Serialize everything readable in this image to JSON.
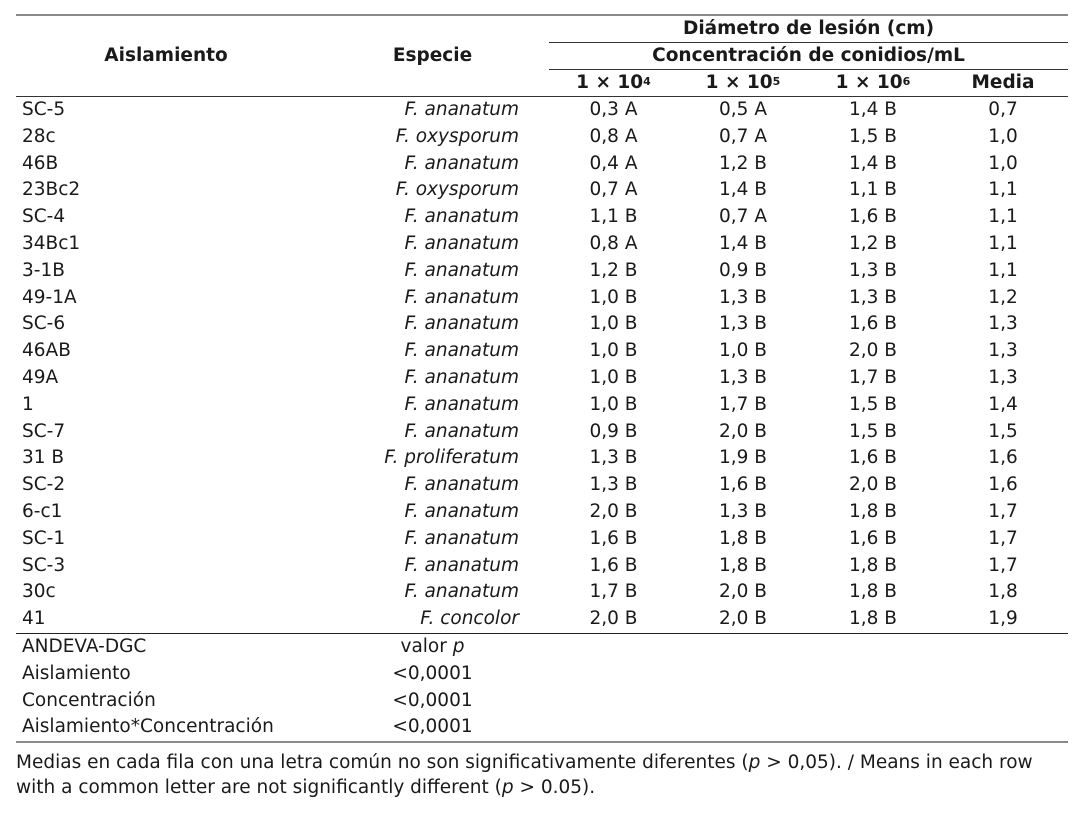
{
  "table": {
    "header": {
      "aislamiento": "Aislamiento",
      "especie": "Especie",
      "diametro": "Diámetro de lesión (cm)",
      "concentracion": "Concentración de conidios/mL",
      "conc_cols": [
        {
          "base": "1 × 10",
          "exp": "4"
        },
        {
          "base": "1 × 10",
          "exp": "5"
        },
        {
          "base": "1 × 10",
          "exp": "6"
        }
      ],
      "media": "Media"
    },
    "rows": [
      {
        "aislamiento": "SC-5",
        "especie": "F. ananatum",
        "c1": "0,3 A",
        "c2": "0,5 A",
        "c3": "1,4 B",
        "media": "0,7"
      },
      {
        "aislamiento": "28c",
        "especie": "F. oxysporum",
        "c1": "0,8 A",
        "c2": "0,7 A",
        "c3": "1,5 B",
        "media": "1,0"
      },
      {
        "aislamiento": "46B",
        "especie": "F. ananatum",
        "c1": "0,4 A",
        "c2": "1,2 B",
        "c3": "1,4 B",
        "media": "1,0"
      },
      {
        "aislamiento": "23Bc2",
        "especie": "F. oxysporum",
        "c1": "0,7 A",
        "c2": "1,4 B",
        "c3": "1,1 B",
        "media": "1,1"
      },
      {
        "aislamiento": "SC-4",
        "especie": "F. ananatum",
        "c1": "1,1 B",
        "c2": "0,7 A",
        "c3": "1,6 B",
        "media": "1,1"
      },
      {
        "aislamiento": "34Bc1",
        "especie": "F. ananatum",
        "c1": "0,8 A",
        "c2": "1,4 B",
        "c3": "1,2 B",
        "media": "1,1"
      },
      {
        "aislamiento": "3-1B",
        "especie": "F. ananatum",
        "c1": "1,2 B",
        "c2": "0,9 B",
        "c3": "1,3 B",
        "media": "1,1"
      },
      {
        "aislamiento": "49-1A",
        "especie": "F. ananatum",
        "c1": "1,0 B",
        "c2": "1,3 B",
        "c3": "1,3 B",
        "media": "1,2"
      },
      {
        "aislamiento": "SC-6",
        "especie": "F. ananatum",
        "c1": "1,0 B",
        "c2": "1,3 B",
        "c3": "1,6 B",
        "media": "1,3"
      },
      {
        "aislamiento": "46AB",
        "especie": "F. ananatum",
        "c1": "1,0 B",
        "c2": "1,0 B",
        "c3": "2,0 B",
        "media": "1,3"
      },
      {
        "aislamiento": "49A",
        "especie": "F. ananatum",
        "c1": "1,0 B",
        "c2": "1,3 B",
        "c3": "1,7 B",
        "media": "1,3"
      },
      {
        "aislamiento": "1",
        "especie": "F. ananatum",
        "c1": "1,0 B",
        "c2": "1,7 B",
        "c3": "1,5 B",
        "media": "1,4"
      },
      {
        "aislamiento": "SC-7",
        "especie": "F. ananatum",
        "c1": "0,9 B",
        "c2": "2,0 B",
        "c3": "1,5 B",
        "media": "1,5"
      },
      {
        "aislamiento": "31 B",
        "especie": "F. proliferatum",
        "c1": "1,3 B",
        "c2": "1,9 B",
        "c3": "1,6 B",
        "media": "1,6"
      },
      {
        "aislamiento": "SC-2",
        "especie": "F. ananatum",
        "c1": "1,3 B",
        "c2": "1,6 B",
        "c3": "2,0 B",
        "media": "1,6"
      },
      {
        "aislamiento": "6-c1",
        "especie": "F. ananatum",
        "c1": "2,0 B",
        "c2": "1,3 B",
        "c3": "1,8 B",
        "media": "1,7"
      },
      {
        "aislamiento": "SC-1",
        "especie": "F. ananatum",
        "c1": "1,6 B",
        "c2": "1,8 B",
        "c3": "1,6 B",
        "media": "1,7"
      },
      {
        "aislamiento": "SC-3",
        "especie": "F. ananatum",
        "c1": "1,6 B",
        "c2": "1,8 B",
        "c3": "1,8 B",
        "media": "1,7"
      },
      {
        "aislamiento": "30c",
        "especie": "F. ananatum",
        "c1": "1,7 B",
        "c2": "2,0 B",
        "c3": "1,8 B",
        "media": "1,8"
      },
      {
        "aislamiento": "41",
        "especie": "F. concolor",
        "c1": "2,0 B",
        "c2": "2,0 B",
        "c3": "1,8 B",
        "media": "1,9"
      }
    ],
    "anova": {
      "title": "ANDEVA-DGC",
      "value_header_prefix": "valor ",
      "value_header_italic": "p",
      "rows": [
        {
          "label": "Aislamiento",
          "value": "<0,0001"
        },
        {
          "label": "Concentración",
          "value": "<0,0001"
        },
        {
          "label": "Aislamiento*Concentración",
          "value": "<0,0001"
        }
      ]
    }
  },
  "footnote": {
    "part1": "Medias en cada fila con una letra común no son significativamente diferentes (",
    "p1": "p",
    "part2": " > 0,05). / Means in each row with a common letter are not significantly different (",
    "p2": "p",
    "part3": " > 0.05)."
  }
}
